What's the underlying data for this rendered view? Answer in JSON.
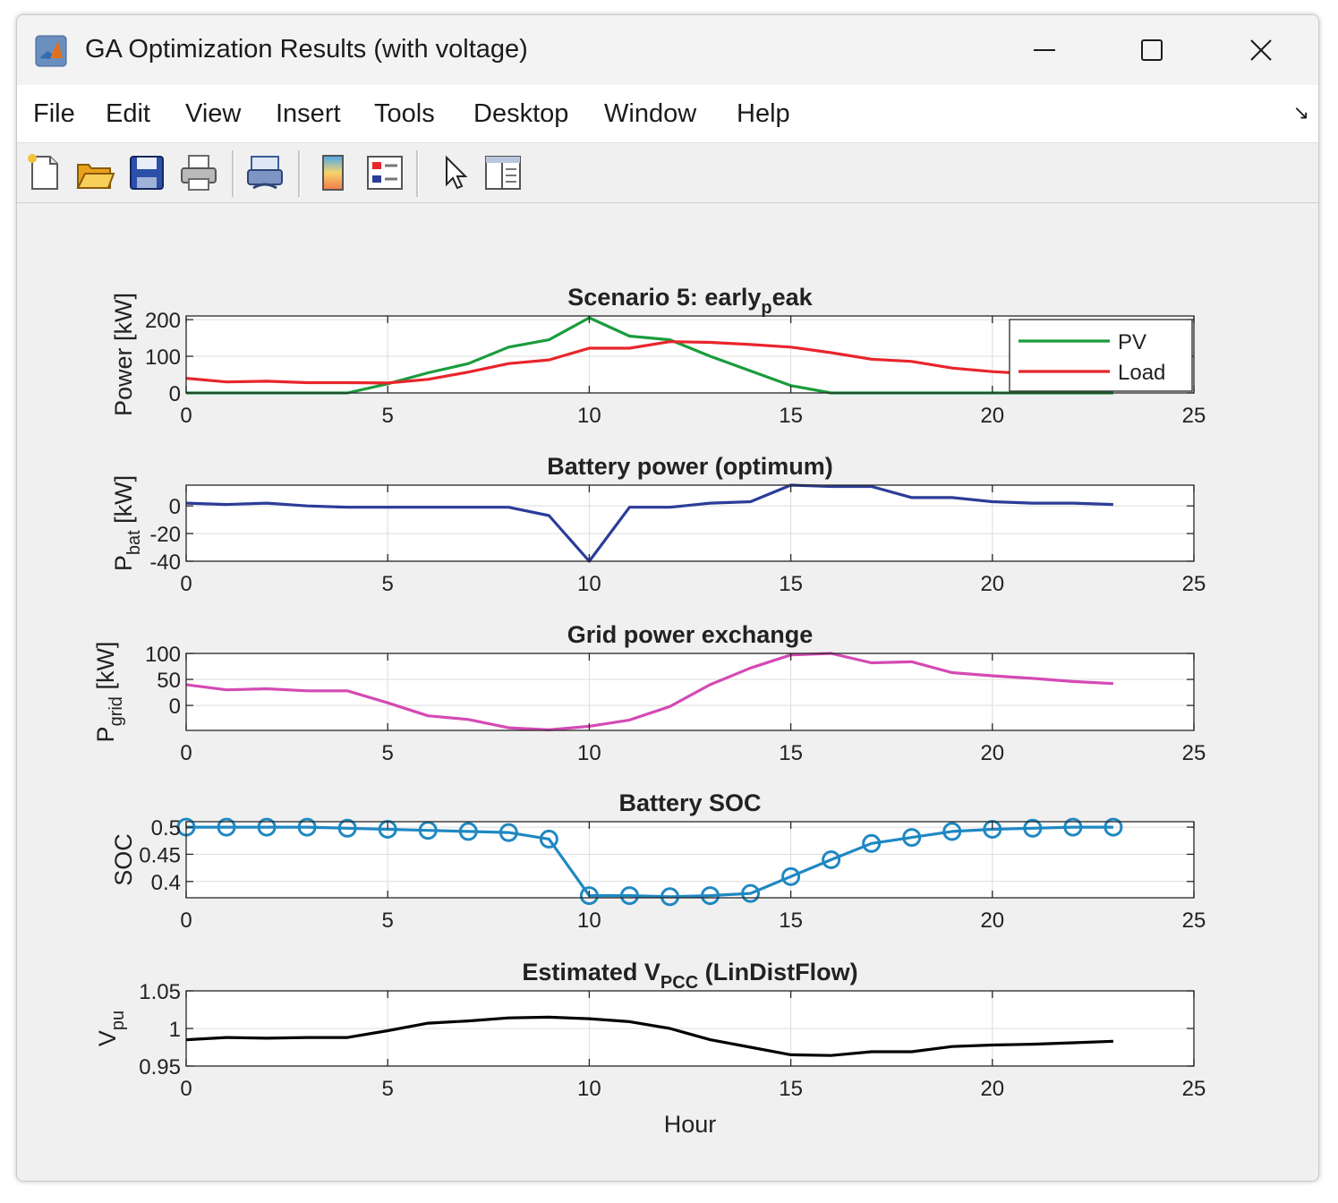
{
  "window": {
    "title": "GA Optimization Results (with voltage)",
    "controls": [
      "minimize",
      "maximize",
      "close"
    ]
  },
  "menu": {
    "items": [
      "File",
      "Edit",
      "View",
      "Insert",
      "Tools",
      "Desktop",
      "Window",
      "Help"
    ]
  },
  "toolbar": {
    "buttons": [
      "new-figure-icon",
      "open-file-icon",
      "save-icon",
      "print-icon",
      "link-plot-icon",
      "colorbar-icon",
      "legend-icon",
      "pointer-icon",
      "property-inspector-icon"
    ]
  },
  "chart_data": [
    {
      "type": "line",
      "title": "Scenario 5: early",
      "title_sub": "p",
      "title_tail": "eak",
      "ylabel": "Power [kW]",
      "xlim": [
        0,
        25
      ],
      "ylim": [
        0,
        210
      ],
      "xticks": [
        0,
        5,
        10,
        15,
        20,
        25
      ],
      "yticks": [
        0,
        100,
        200
      ],
      "grid": true,
      "legend": "top-right",
      "series": [
        {
          "name": "PV",
          "color": "#1a9c3c",
          "x": [
            0,
            1,
            2,
            3,
            4,
            5,
            6,
            7,
            8,
            9,
            10,
            11,
            12,
            13,
            14,
            15,
            16,
            17,
            18,
            19,
            20,
            21,
            22,
            23
          ],
          "values": [
            0,
            0,
            0,
            0,
            0,
            25,
            55,
            80,
            125,
            145,
            205,
            155,
            145,
            100,
            60,
            20,
            0,
            0,
            0,
            0,
            0,
            0,
            0,
            0
          ]
        },
        {
          "name": "Load",
          "color": "#e8252b",
          "x": [
            0,
            1,
            2,
            3,
            4,
            5,
            6,
            7,
            8,
            9,
            10,
            11,
            12,
            13,
            14,
            15,
            16,
            17,
            18,
            19,
            20,
            21,
            22,
            23
          ],
          "values": [
            40,
            30,
            32,
            28,
            28,
            27,
            37,
            57,
            80,
            90,
            122,
            122,
            140,
            138,
            132,
            125,
            110,
            92,
            86,
            68,
            58,
            52,
            48,
            44
          ]
        }
      ]
    },
    {
      "type": "line",
      "title": "Battery power (optimum)",
      "ylabel": "P",
      "ylabel_sub": "bat",
      "ylabel_tail": " [kW]",
      "xlim": [
        0,
        25
      ],
      "ylim": [
        -40,
        15
      ],
      "xticks": [
        0,
        5,
        10,
        15,
        20,
        25
      ],
      "yticks": [
        -40,
        -20,
        0
      ],
      "grid": true,
      "series": [
        {
          "color": "#2b3d99",
          "x": [
            0,
            1,
            2,
            3,
            4,
            5,
            6,
            7,
            8,
            9,
            10,
            11,
            12,
            13,
            14,
            15,
            16,
            17,
            18,
            19,
            20,
            21,
            22,
            23
          ],
          "values": [
            2,
            1,
            2,
            0,
            -1,
            -1,
            -1,
            -1,
            -1,
            -7,
            -40,
            -1,
            -1,
            2,
            3,
            15,
            14,
            14,
            6,
            6,
            3,
            2,
            2,
            1
          ]
        }
      ]
    },
    {
      "type": "line",
      "title": "Grid power exchange",
      "ylabel": "P",
      "ylabel_sub": "grid",
      "ylabel_tail": " [kW]",
      "xlim": [
        0,
        25
      ],
      "ylim": [
        -48,
        100
      ],
      "xticks": [
        0,
        5,
        10,
        15,
        20,
        25
      ],
      "yticks": [
        0,
        50,
        100
      ],
      "grid": true,
      "series": [
        {
          "color": "#d44ab4",
          "x": [
            0,
            1,
            2,
            3,
            4,
            5,
            6,
            7,
            8,
            9,
            10,
            11,
            12,
            13,
            14,
            15,
            16,
            17,
            18,
            19,
            20,
            21,
            22,
            23
          ],
          "values": [
            40,
            30,
            32,
            28,
            28,
            5,
            -20,
            -27,
            -43,
            -47,
            -40,
            -28,
            -2,
            40,
            72,
            97,
            100,
            82,
            84,
            63,
            57,
            52,
            46,
            42
          ]
        }
      ]
    },
    {
      "type": "line",
      "title": "Battery SOC",
      "ylabel": "SOC",
      "xlim": [
        0,
        25
      ],
      "ylim": [
        0.37,
        0.51
      ],
      "xticks": [
        0,
        5,
        10,
        15,
        20,
        25
      ],
      "yticks": [
        0.4,
        0.45,
        0.5
      ],
      "ytick_labels": [
        "0.4",
        "0.45",
        "0.5"
      ],
      "grid": true,
      "markers": "circle",
      "series": [
        {
          "color": "#1f88c2",
          "x": [
            0,
            1,
            2,
            3,
            4,
            5,
            6,
            7,
            8,
            9,
            10,
            11,
            12,
            13,
            14,
            15,
            16,
            17,
            18,
            19,
            20,
            21,
            22,
            23
          ],
          "values": [
            0.5,
            0.5,
            0.5,
            0.5,
            0.498,
            0.496,
            0.494,
            0.492,
            0.49,
            0.478,
            0.374,
            0.374,
            0.372,
            0.374,
            0.378,
            0.409,
            0.44,
            0.47,
            0.481,
            0.492,
            0.496,
            0.498,
            0.5,
            0.5
          ]
        }
      ]
    },
    {
      "type": "line",
      "title": "Estimated V",
      "title_sub": "PCC",
      "title_tail": " (LinDistFlow)",
      "ylabel": "V",
      "ylabel_sub": "pu",
      "xlabel": "Hour",
      "xlim": [
        0,
        25
      ],
      "ylim": [
        0.95,
        1.05
      ],
      "xticks": [
        0,
        5,
        10,
        15,
        20,
        25
      ],
      "yticks": [
        0.95,
        1,
        1.05
      ],
      "ytick_labels": [
        "0.95",
        "1",
        "1.05"
      ],
      "grid": true,
      "series": [
        {
          "color": "#000000",
          "x": [
            0,
            1,
            2,
            3,
            4,
            5,
            6,
            7,
            8,
            9,
            10,
            11,
            12,
            13,
            14,
            15,
            16,
            17,
            18,
            19,
            20,
            21,
            22,
            23
          ],
          "values": [
            0.985,
            0.988,
            0.987,
            0.988,
            0.988,
            0.997,
            1.007,
            1.01,
            1.014,
            1.015,
            1.013,
            1.009,
            1.0,
            0.985,
            0.975,
            0.965,
            0.964,
            0.969,
            0.969,
            0.976,
            0.978,
            0.979,
            0.981,
            0.983
          ]
        }
      ]
    }
  ]
}
